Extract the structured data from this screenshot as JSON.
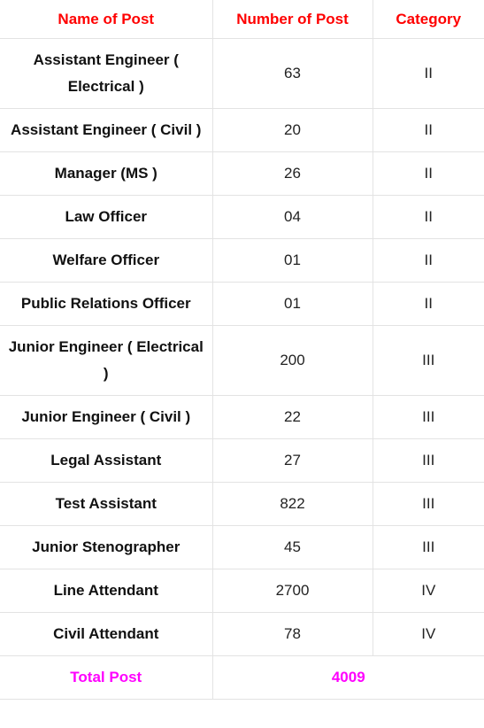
{
  "header": {
    "name_label": "Name of Post",
    "number_label": "Number of Post",
    "category_label": "Category"
  },
  "rows": [
    {
      "name": "Assistant Engineer ( Electrical )",
      "number": "63",
      "category": "II"
    },
    {
      "name": "Assistant Engineer ( Civil )",
      "number": "20",
      "category": "II"
    },
    {
      "name": "Manager (MS )",
      "number": "26",
      "category": "II"
    },
    {
      "name": "Law Officer",
      "number": "04",
      "category": "II"
    },
    {
      "name": "Welfare Officer",
      "number": "01",
      "category": "II"
    },
    {
      "name": "Public Relations Officer",
      "number": "01",
      "category": "II"
    },
    {
      "name": "Junior Engineer ( Electrical )",
      "number": "200",
      "category": "III"
    },
    {
      "name": "Junior Engineer ( Civil )",
      "number": "22",
      "category": "III"
    },
    {
      "name": "Legal Assistant",
      "number": "27",
      "category": "III"
    },
    {
      "name": "Test Assistant",
      "number": "822",
      "category": "III"
    },
    {
      "name": "Junior Stenographer",
      "number": "45",
      "category": "III"
    },
    {
      "name": "Line Attendant",
      "number": "2700",
      "category": "IV"
    },
    {
      "name": "Civil Attendant",
      "number": "78",
      "category": "IV"
    }
  ],
  "total": {
    "label": "Total Post",
    "value": "4009"
  },
  "colors": {
    "header_text": "#ff0000",
    "total_text": "#ff00ff",
    "border": "#e3e3e3"
  }
}
